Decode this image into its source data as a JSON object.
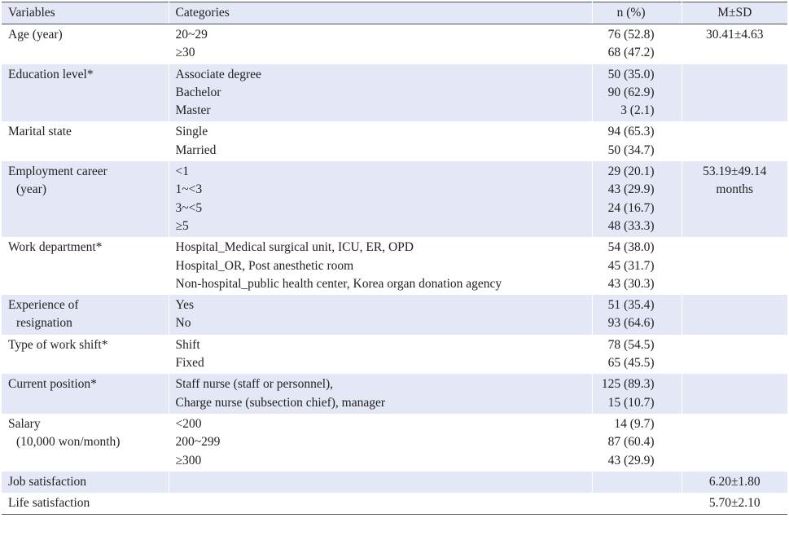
{
  "headers": [
    "Variables",
    "Categories",
    "n (%)",
    "M±SD"
  ],
  "rows": [
    {
      "variable": [
        "Age (year)"
      ],
      "categories": [
        "20~29",
        "≥30"
      ],
      "n": [
        "76 (52.8)",
        "68 (47.2)"
      ],
      "msd": [
        "30.41±4.63"
      ]
    },
    {
      "variable": [
        "Education level*"
      ],
      "categories": [
        "Associate degree",
        "Bachelor",
        "Master"
      ],
      "n": [
        "50 (35.0)",
        "90 (62.9)",
        "3 (2.1)"
      ],
      "msd": []
    },
    {
      "variable": [
        "Marital state"
      ],
      "categories": [
        "Single",
        "Married"
      ],
      "n": [
        "94 (65.3)",
        "50 (34.7)"
      ],
      "msd": []
    },
    {
      "variable": [
        "Employment career",
        "(year)"
      ],
      "categories": [
        "<1",
        "1~<3",
        "3~<5",
        "≥5"
      ],
      "n": [
        "29 (20.1)",
        "43 (29.9)",
        "24 (16.7)",
        "48 (33.3)"
      ],
      "msd": [
        "53.19±49.14",
        "months"
      ]
    },
    {
      "variable": [
        "Work department*"
      ],
      "categories": [
        "Hospital_Medical surgical unit, ICU, ER, OPD",
        "Hospital_OR, Post anesthetic room",
        "Non-hospital_public health center, Korea organ donation agency"
      ],
      "n": [
        "54 (38.0)",
        "45 (31.7)",
        "43 (30.3)"
      ],
      "msd": []
    },
    {
      "variable": [
        "Experience of",
        "resignation"
      ],
      "categories": [
        "Yes",
        "No"
      ],
      "n": [
        "51 (35.4)",
        "93 (64.6)"
      ],
      "msd": []
    },
    {
      "variable": [
        "Type of work shift*"
      ],
      "categories": [
        "Shift",
        "Fixed"
      ],
      "n": [
        "78 (54.5)",
        "65 (45.5)"
      ],
      "msd": []
    },
    {
      "variable": [
        "Current position*"
      ],
      "categories": [
        "Staff nurse (staff or personnel),",
        "Charge nurse (subsection chief), manager"
      ],
      "n": [
        "125 (89.3)",
        "15 (10.7)"
      ],
      "msd": []
    },
    {
      "variable": [
        "Salary",
        "(10,000 won/month)"
      ],
      "categories": [
        "<200",
        "200~299",
        "≥300"
      ],
      "n": [
        "14 (9.7)",
        "87 (60.4)",
        "43 (29.9)"
      ],
      "msd": []
    },
    {
      "variable": [
        "Job satisfaction"
      ],
      "categories": [],
      "n": [],
      "msd": [
        "6.20±1.80"
      ]
    },
    {
      "variable": [
        "Life satisfaction"
      ],
      "categories": [],
      "n": [],
      "msd": [
        "5.70±2.10"
      ]
    }
  ]
}
